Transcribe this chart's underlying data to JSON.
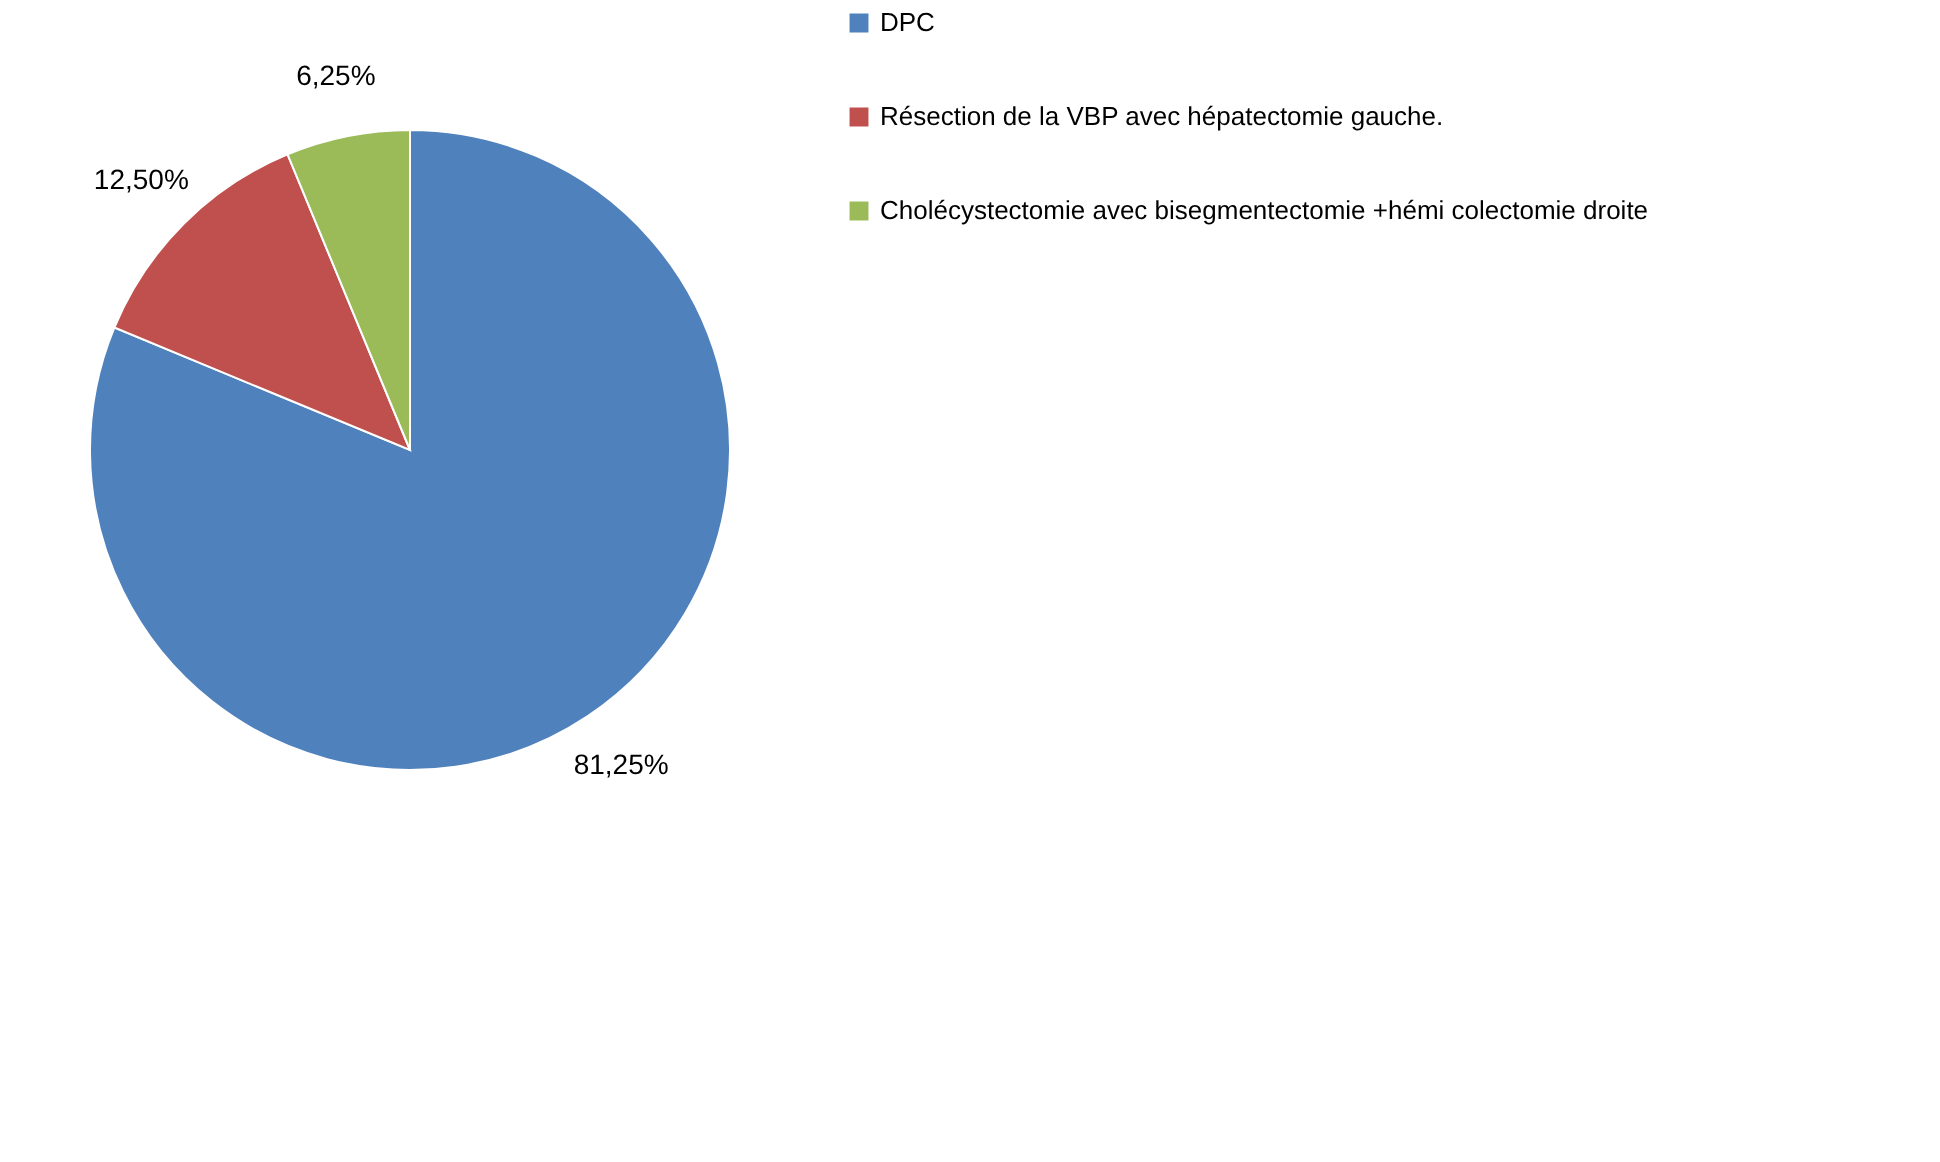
{
  "chart_data": {
    "type": "pie",
    "categories": [
      "DPC",
      "Résection de la VBP avec hépatectomie gauche.",
      "Cholécystectomie avec bisegmentectomie +hémi colectomie droite"
    ],
    "values": [
      81.25,
      12.5,
      6.25
    ],
    "colors": [
      "#4f81bd",
      "#c0504d",
      "#9bbb59"
    ],
    "value_labels": [
      "81,25%",
      "12,50%",
      "6,25%"
    ],
    "legend": "right"
  }
}
